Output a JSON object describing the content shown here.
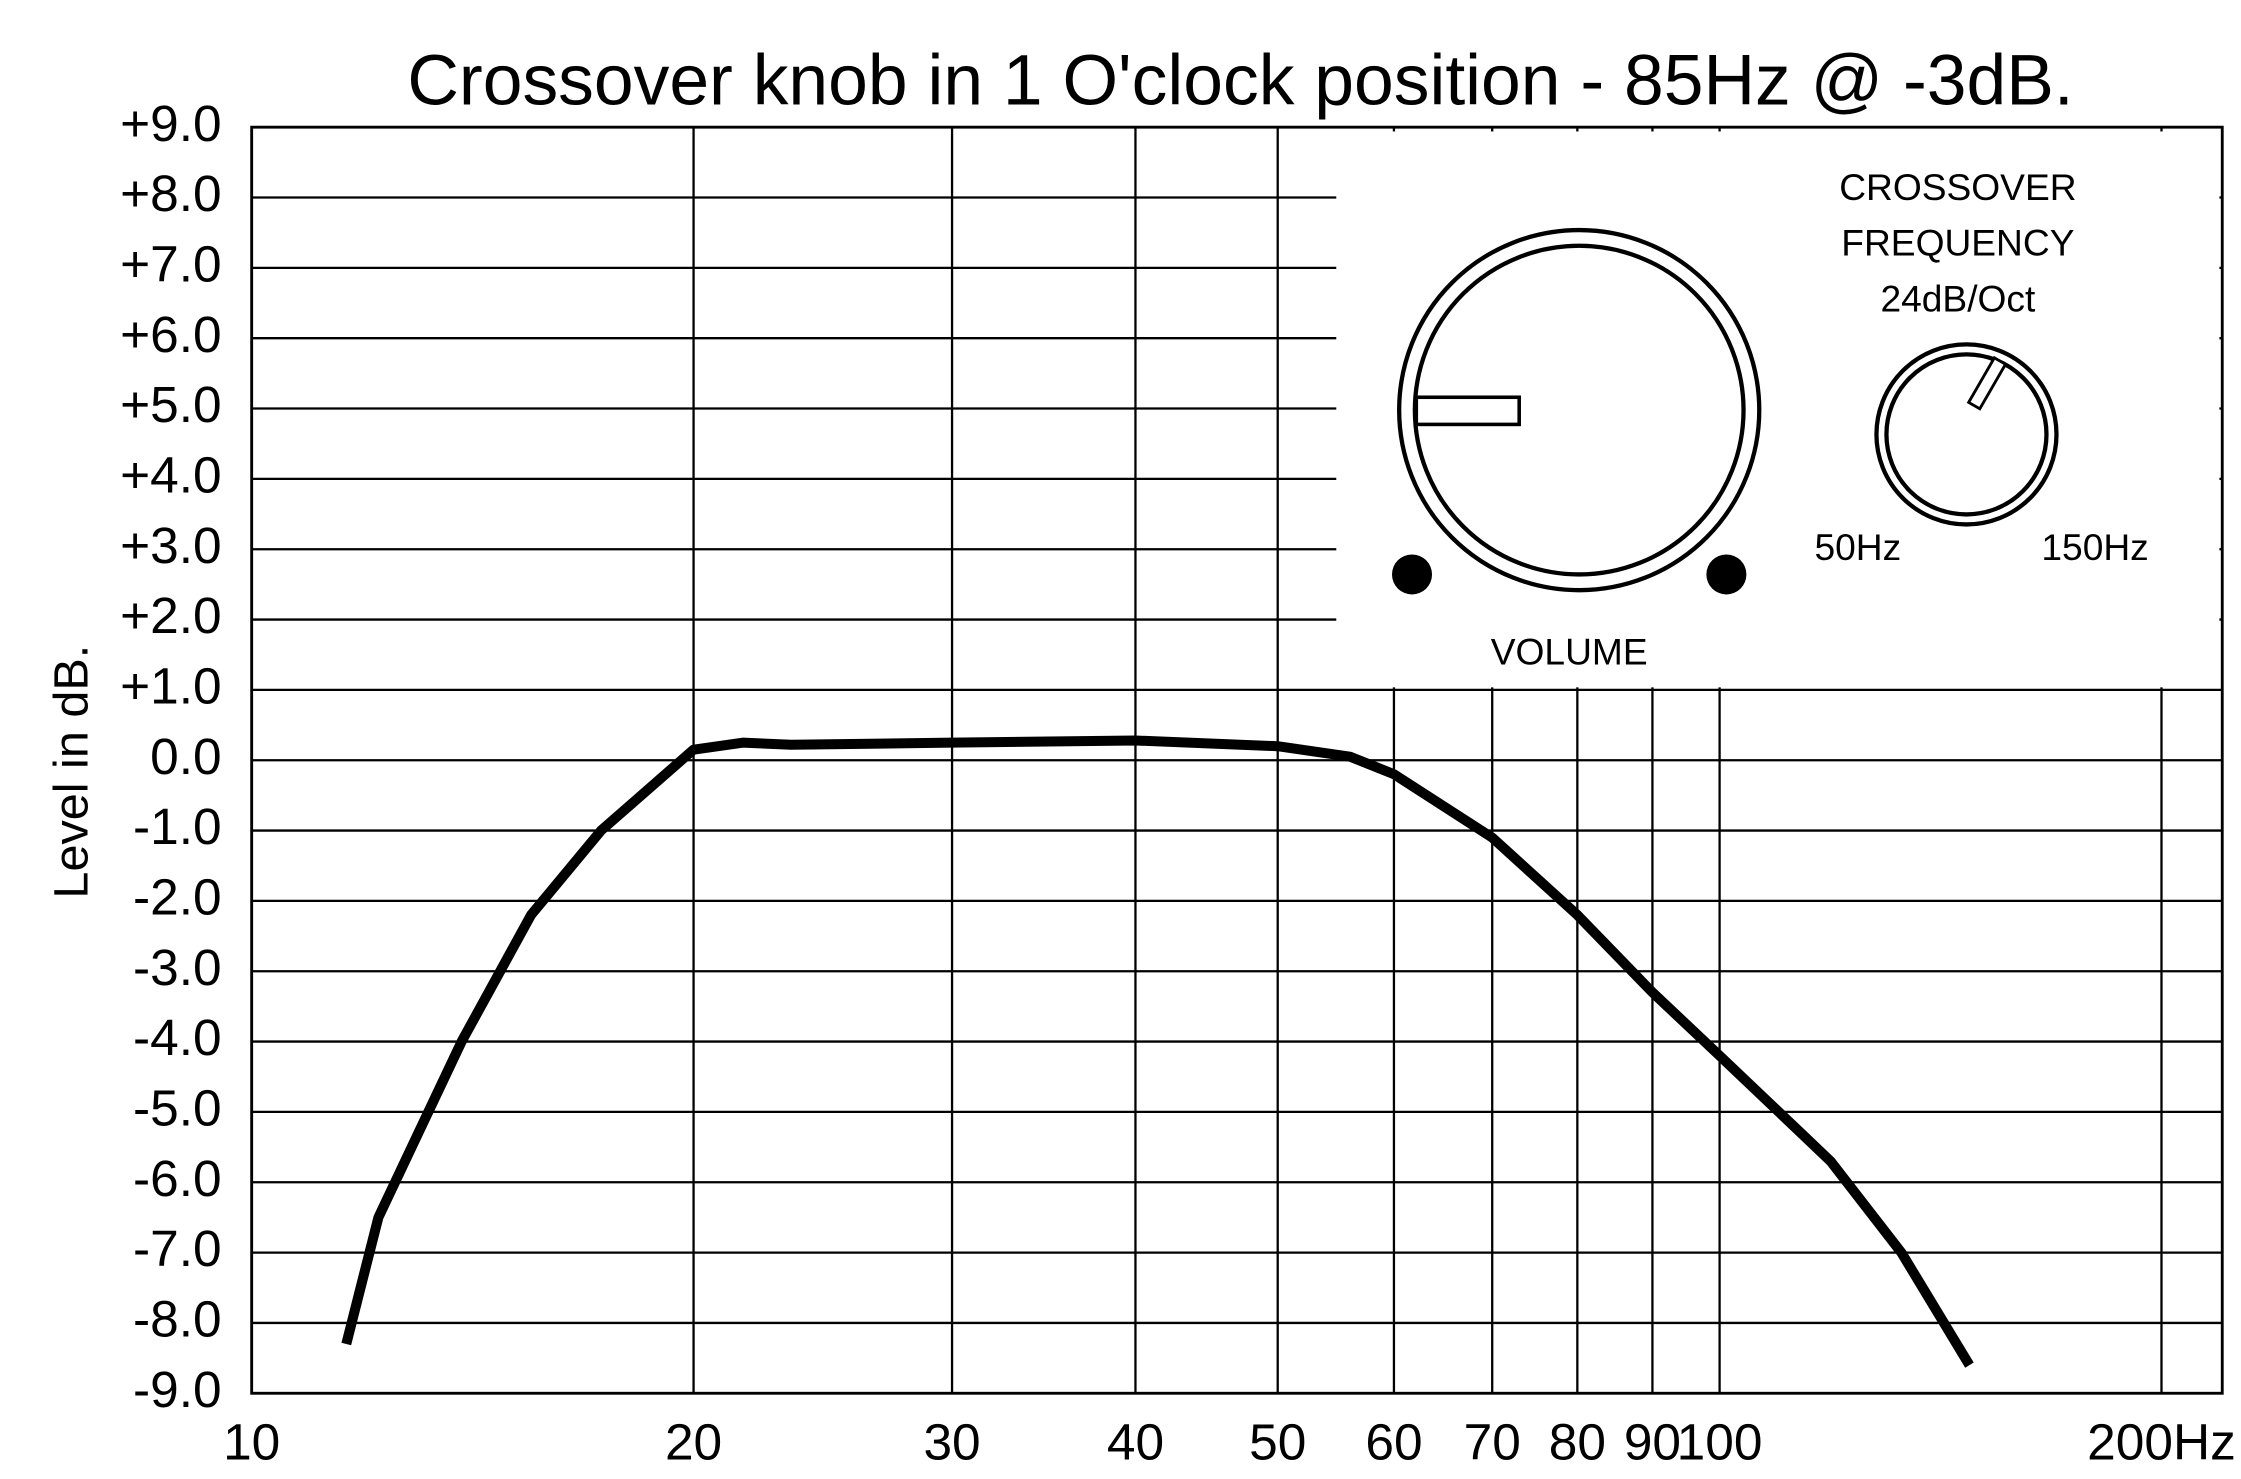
{
  "chart_data": {
    "type": "line",
    "title": "Crossover knob in 1 O'clock position - 85Hz @ -3dB.",
    "y_label": "Level in dB.",
    "log_x": true,
    "grid": true,
    "xlim": [
      10,
      220
    ],
    "xticks": [
      10,
      20,
      30,
      40,
      50,
      60,
      70,
      80,
      90,
      100,
      {
        "value": 200,
        "label": "200Hz"
      }
    ],
    "ylim": [
      -9,
      9
    ],
    "yticks": [
      {
        "value": -9,
        "label": "-9.0"
      },
      {
        "value": -8,
        "label": "-8.0"
      },
      {
        "value": -7,
        "label": "-7.0"
      },
      {
        "value": -6,
        "label": "-6.0"
      },
      {
        "value": -5,
        "label": "-5.0"
      },
      {
        "value": -4,
        "label": "-4.0"
      },
      {
        "value": -3,
        "label": "-3.0"
      },
      {
        "value": -2,
        "label": "-2.0"
      },
      {
        "value": -1,
        "label": "-1.0"
      },
      {
        "value": 0,
        "label": "0.0"
      },
      {
        "value": 1,
        "label": "+1.0"
      },
      {
        "value": 2,
        "label": "+2.0"
      },
      {
        "value": 3,
        "label": "+3.0"
      },
      {
        "value": 4,
        "label": "+4.0"
      },
      {
        "value": 5,
        "label": "+5.0"
      },
      {
        "value": 6,
        "label": "+6.0"
      },
      {
        "value": 7,
        "label": "+7.0"
      },
      {
        "value": 8,
        "label": "+8.0"
      },
      {
        "value": 9,
        "label": "+9.0"
      }
    ],
    "x": [
      11.6,
      12.2,
      13.9,
      15.5,
      17.3,
      20,
      21.6,
      23.3,
      30,
      40,
      50,
      56,
      60,
      70,
      80,
      90,
      100,
      119,
      133,
      148
    ],
    "series": [
      {
        "color": "#000000",
        "values": [
          -8.3,
          -6.5,
          -4,
          -2.2,
          -1,
          0.15,
          0.25,
          0.22,
          0.25,
          0.28,
          0.2,
          0.05,
          -0.2,
          -1.1,
          -2.2,
          -3.3,
          -4.2,
          -5.7,
          -7,
          -8.6
        ]
      }
    ],
    "inset": {
      "crossover": [
        "CROSSOVER",
        "FREQUENCY",
        "24dB/Oct"
      ],
      "min": "50Hz",
      "max": "150Hz",
      "volume": "VOLUME"
    }
  }
}
